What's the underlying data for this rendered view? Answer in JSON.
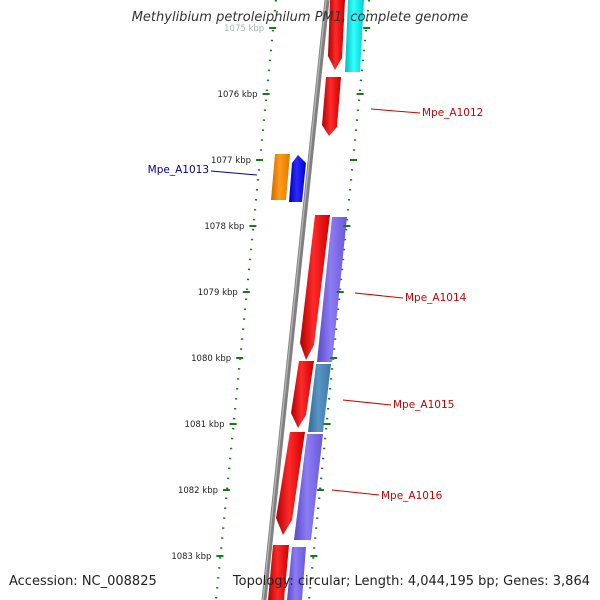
{
  "title": "Methylibium petroleiphilum PM1, complete genome",
  "footer": {
    "accession": "Accession: NC_008825",
    "topology": "Topology: circular; Length: 4,044,195 bp; Genes: 3,864"
  },
  "ticks": [
    {
      "label": "1075 kbp",
      "kbp": 1075
    },
    {
      "label": "1076 kbp",
      "kbp": 1076
    },
    {
      "label": "1077 kbp",
      "kbp": 1077
    },
    {
      "label": "1078 kbp",
      "kbp": 1078
    },
    {
      "label": "1079 kbp",
      "kbp": 1079
    },
    {
      "label": "1080 kbp",
      "kbp": 1080
    },
    {
      "label": "1081 kbp",
      "kbp": 1081
    },
    {
      "label": "1082 kbp",
      "kbp": 1082
    },
    {
      "label": "1083 kbp",
      "kbp": 1083
    }
  ],
  "gene_labels": [
    {
      "label": "Mpe_A1012",
      "color": "#cc0000"
    },
    {
      "label": "Mpe_A1013",
      "color": "#000099"
    },
    {
      "label": "Mpe_A1014",
      "color": "#cc0000"
    },
    {
      "label": "Mpe_A1015",
      "color": "#cc0000"
    },
    {
      "label": "Mpe_A1016",
      "color": "#cc0000"
    }
  ],
  "colors": {
    "backbone": "#808080",
    "tick": "#1a7a1a",
    "gene_forward": "#ff0000",
    "gene_reverse": "#0000ff",
    "orange_feature": "#ff8c00",
    "cyan_feature": "#00ffff",
    "purple_feature": "#7b68ee",
    "steel_feature": "#4682b4"
  }
}
